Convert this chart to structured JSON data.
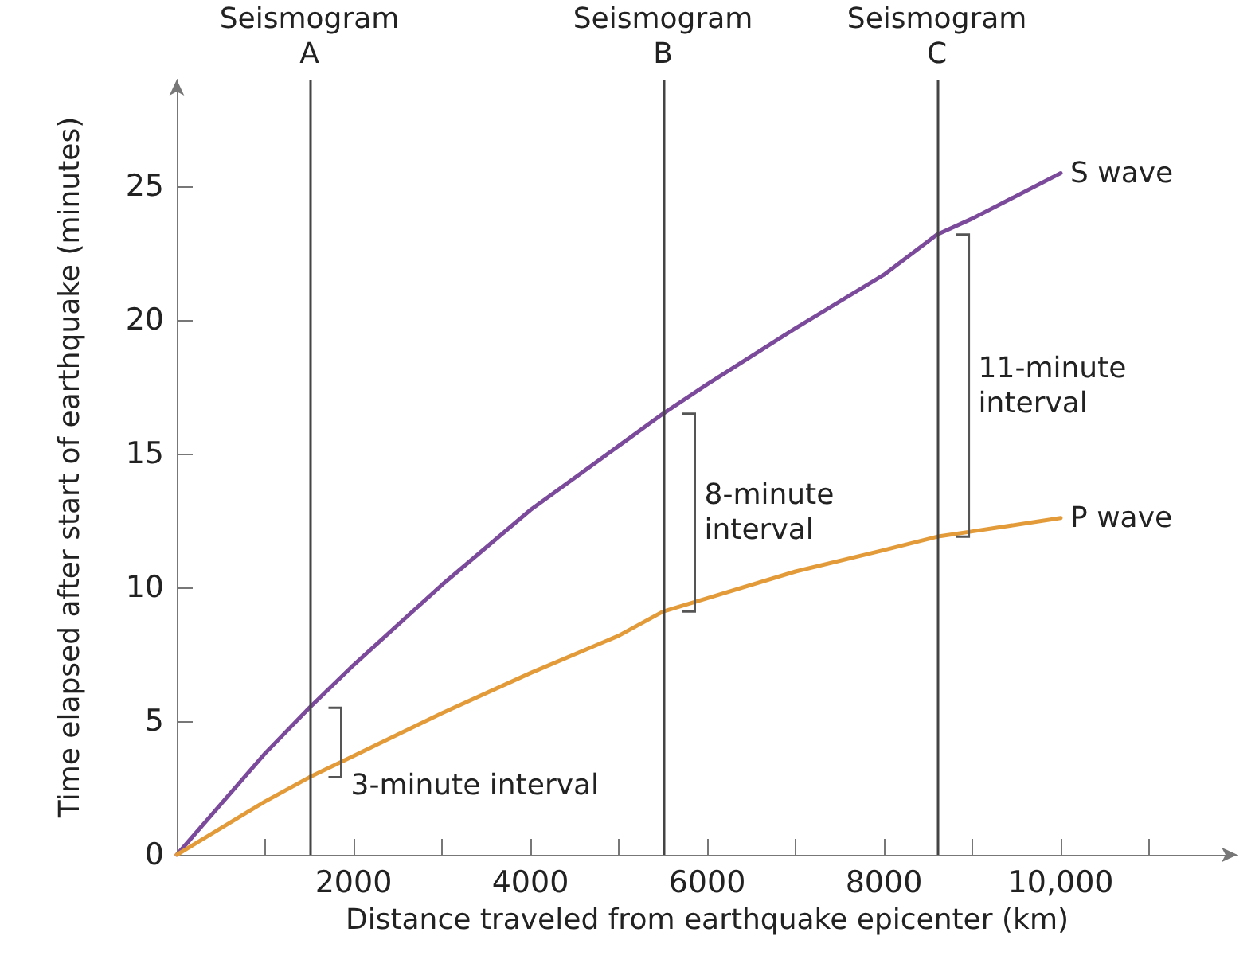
{
  "chart_data": {
    "type": "line",
    "xlabel": "Distance traveled from earthquake epicenter (km)",
    "ylabel": "Time elapsed after start of earthquake (minutes)",
    "series": [
      {
        "name": "S wave",
        "color": "#7b4a9b",
        "x": [
          0,
          1000,
          1500,
          2000,
          3000,
          4000,
          5000,
          5500,
          6000,
          7000,
          8000,
          8600,
          9000,
          10000
        ],
        "values": [
          0,
          3.8,
          5.5,
          7.1,
          10.1,
          12.9,
          15.3,
          16.5,
          17.6,
          19.7,
          21.7,
          23.2,
          23.8,
          25.5
        ]
      },
      {
        "name": "P wave",
        "color": "#e39b3a",
        "x": [
          0,
          1000,
          1500,
          2000,
          3000,
          4000,
          5000,
          5500,
          6000,
          7000,
          8000,
          8600,
          9000,
          10000
        ],
        "values": [
          0,
          2.0,
          2.9,
          3.7,
          5.3,
          6.8,
          8.2,
          9.1,
          9.6,
          10.6,
          11.4,
          11.9,
          12.1,
          12.6
        ]
      }
    ],
    "xlim": [
      0,
      12000
    ],
    "ylim": [
      0,
      29
    ],
    "xticks": [
      {
        "value": 0,
        "label": null
      },
      {
        "value": 1000,
        "label": null
      },
      2000,
      {
        "value": 3000,
        "label": null
      },
      4000,
      {
        "value": 5000,
        "label": null
      },
      6000,
      {
        "value": 7000,
        "label": null
      },
      8000,
      {
        "value": 9000,
        "label": null
      },
      {
        "value": 10000,
        "label": "10,000"
      },
      {
        "value": 11000,
        "label": null
      }
    ],
    "yticks": [
      0,
      5,
      10,
      15,
      20,
      25
    ],
    "ref_lines": [
      {
        "axis": "x",
        "value": 1500,
        "label": "Seismogram A",
        "color": "#444444"
      },
      {
        "axis": "x",
        "value": 5500,
        "label": "Seismogram B",
        "color": "#444444"
      },
      {
        "axis": "x",
        "value": 8600,
        "label": "Seismogram C",
        "color": "#444444"
      }
    ],
    "annotations": [
      "3-minute interval",
      "8-minute interval",
      "11-minute interval"
    ],
    "grid": false,
    "legend": false,
    "marker": "none",
    "line_style": "solid"
  }
}
